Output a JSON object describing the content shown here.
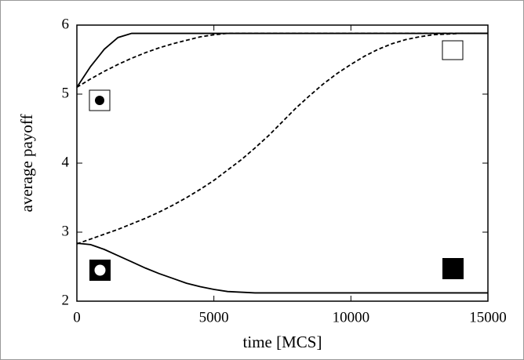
{
  "chart_data": {
    "type": "line",
    "xlabel": "time [MCS]",
    "ylabel": "average payoff",
    "x": [
      0,
      500,
      1000,
      1500,
      2000,
      2500,
      3000,
      3500,
      4000,
      4500,
      5000,
      5500,
      6000,
      6500,
      7000,
      7500,
      8000,
      8500,
      9000,
      9500,
      10000,
      10500,
      11000,
      11500,
      12000,
      12500,
      13000,
      13500,
      14000,
      14500,
      15000
    ],
    "series": [
      {
        "color": "#000000",
        "style": "solid",
        "values": [
          5.1,
          5.4,
          5.65,
          5.82,
          5.88,
          5.88,
          5.88,
          5.88,
          5.88,
          5.88,
          5.88,
          5.88,
          5.88,
          5.88,
          5.88,
          5.88,
          5.88,
          5.88,
          5.88,
          5.88,
          5.88,
          5.88,
          5.88,
          5.88,
          5.88,
          5.88,
          5.88,
          5.88,
          5.88,
          5.88,
          5.88
        ]
      },
      {
        "color": "#000000",
        "style": "dashed",
        "values": [
          5.1,
          5.22,
          5.33,
          5.43,
          5.52,
          5.6,
          5.67,
          5.73,
          5.78,
          5.83,
          5.86,
          5.88,
          5.88,
          5.88,
          5.88,
          5.88,
          5.88,
          5.88,
          5.88,
          5.88,
          5.88,
          5.88,
          5.88,
          5.88,
          5.88,
          5.88,
          5.88,
          5.88,
          5.88,
          5.88,
          5.88
        ]
      },
      {
        "color": "#000000",
        "style": "dashed",
        "values": [
          2.83,
          2.9,
          2.97,
          3.04,
          3.12,
          3.2,
          3.29,
          3.39,
          3.5,
          3.62,
          3.75,
          3.9,
          4.05,
          4.22,
          4.4,
          4.6,
          4.8,
          4.98,
          5.15,
          5.3,
          5.43,
          5.55,
          5.65,
          5.73,
          5.79,
          5.83,
          5.86,
          5.87,
          5.88,
          5.88,
          5.88
        ]
      },
      {
        "color": "#000000",
        "style": "solid",
        "values": [
          2.84,
          2.82,
          2.75,
          2.66,
          2.57,
          2.48,
          2.4,
          2.33,
          2.26,
          2.21,
          2.17,
          2.14,
          2.13,
          2.12,
          2.12,
          2.12,
          2.12,
          2.12,
          2.12,
          2.12,
          2.12,
          2.12,
          2.12,
          2.12,
          2.12,
          2.12,
          2.12,
          2.12,
          2.12,
          2.12,
          2.12
        ]
      }
    ],
    "xlim": [
      0,
      15000
    ],
    "xticks": [
      0,
      5000,
      10000,
      15000
    ],
    "ylim": [
      2,
      6
    ],
    "yticks": [
      2,
      3,
      4,
      5,
      6
    ]
  }
}
